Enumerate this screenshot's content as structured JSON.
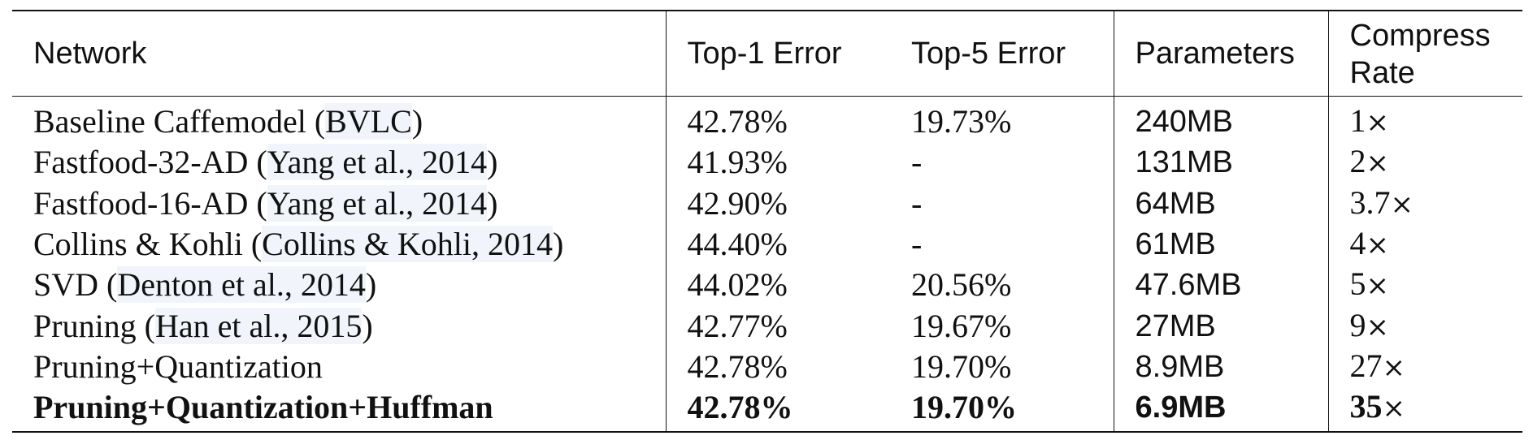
{
  "table": {
    "headers": {
      "network": "Network",
      "top1": "Top-1 Error",
      "top5": "Top-5 Error",
      "parameters": "Parameters",
      "compress_rate_line1": "Compress",
      "compress_rate_line2": "Rate"
    },
    "rows": [
      {
        "network_name": "Baseline Caffemodel (",
        "network_ref": "BVLC",
        "network_tail": ")",
        "top1": "42.78%",
        "top5": "19.73%",
        "parameters": "240MB",
        "rate": "1",
        "rate_suffix": "×"
      },
      {
        "network_name": "Fastfood-32-AD (",
        "network_ref": "Yang et al., 2014",
        "network_tail": ")",
        "top1": "41.93%",
        "top5": "-",
        "parameters": "131MB",
        "rate": "2",
        "rate_suffix": "×"
      },
      {
        "network_name": "Fastfood-16-AD (",
        "network_ref": "Yang et al., 2014",
        "network_tail": ")",
        "top1": "42.90%",
        "top5": "-",
        "parameters": "64MB",
        "rate": "3.7",
        "rate_suffix": "×"
      },
      {
        "network_name": "Collins & Kohli (",
        "network_ref": "Collins & Kohli, 2014",
        "network_tail": ")",
        "top1": "44.40%",
        "top5": "-",
        "parameters": "61MB",
        "rate": "4",
        "rate_suffix": "×"
      },
      {
        "network_name": "SVD (",
        "network_ref": "Denton et al., 2014",
        "network_tail": ")",
        "top1": "44.02%",
        "top5": "20.56%",
        "parameters": "47.6MB",
        "rate": "5",
        "rate_suffix": "×"
      },
      {
        "network_name": "Pruning (",
        "network_ref": "Han et al., 2015",
        "network_tail": ")",
        "top1": "42.77%",
        "top5": "19.67%",
        "parameters": "27MB",
        "rate": "9",
        "rate_suffix": "×"
      },
      {
        "network_name": "Pruning+Quantization",
        "network_ref": "",
        "network_tail": "",
        "top1": "42.78%",
        "top5": "19.70%",
        "parameters": "8.9MB",
        "rate": "27",
        "rate_suffix": "×"
      },
      {
        "network_name": "Pruning+Quantization+Huffman",
        "network_ref": "",
        "network_tail": "",
        "top1": "42.78%",
        "top5": "19.70%",
        "parameters": "6.9MB",
        "rate": "35",
        "rate_suffix": "×"
      }
    ]
  }
}
